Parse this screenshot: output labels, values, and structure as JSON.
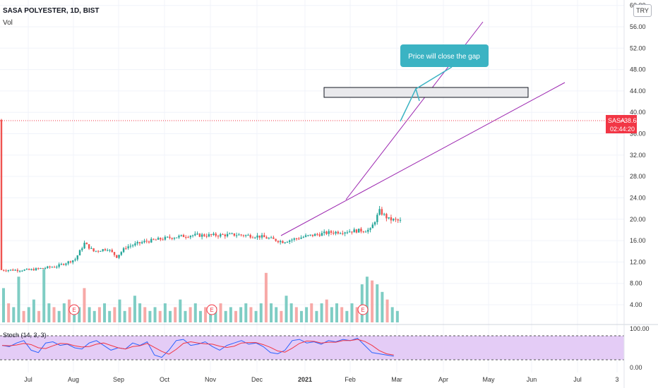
{
  "header": {
    "symbol": "SASA POLYESTER, 1D, BIST",
    "vol_label": "Vol"
  },
  "currency_button": "TRY",
  "price_label": {
    "symbol": "SASA",
    "price": "38.64",
    "countdown": "02:44:20",
    "color": "#f23645"
  },
  "callout": {
    "text": "Price will close the gap",
    "color": "#3bb3c3"
  },
  "stoch_label": "Stoch (14, 3, 3)",
  "earnings_marker": "E",
  "chart_data": {
    "type": "candlestick",
    "title": "SASA POLYESTER, 1D, BIST",
    "y_ticks": [
      "60.00",
      "56.00",
      "52.00",
      "48.00",
      "44.00",
      "40.00",
      "36.00",
      "32.00",
      "28.00",
      "24.00",
      "20.00",
      "16.00",
      "12.00",
      "8.00",
      "4.00"
    ],
    "stoch_ticks": [
      "100.00",
      "0.00"
    ],
    "x_ticks": [
      "Jul",
      "Aug",
      "Sep",
      "Oct",
      "Nov",
      "Dec",
      "2021",
      "Feb",
      "Mar",
      "Apr",
      "May",
      "Jun",
      "Jul",
      "3"
    ],
    "ylim": [
      0,
      60
    ],
    "current_price": 38.64,
    "gap_zone": [
      42.8,
      44.8
    ],
    "price_path": [
      {
        "x": 0.0,
        "y": 10.5
      },
      {
        "x": 0.6,
        "y": 11.2
      },
      {
        "x": 1.0,
        "y": 12.5
      },
      {
        "x": 1.2,
        "y": 15.5
      },
      {
        "x": 1.4,
        "y": 14.0
      },
      {
        "x": 1.7,
        "y": 14.5
      },
      {
        "x": 1.9,
        "y": 13.0
      },
      {
        "x": 2.1,
        "y": 14.8
      },
      {
        "x": 2.5,
        "y": 15.8
      },
      {
        "x": 3.0,
        "y": 16.5
      },
      {
        "x": 3.5,
        "y": 17.0
      },
      {
        "x": 4.0,
        "y": 17.0
      },
      {
        "x": 4.5,
        "y": 17.1
      },
      {
        "x": 5.0,
        "y": 16.8
      },
      {
        "x": 5.5,
        "y": 15.8
      },
      {
        "x": 6.0,
        "y": 16.8
      },
      {
        "x": 6.5,
        "y": 17.5
      },
      {
        "x": 7.0,
        "y": 17.8
      },
      {
        "x": 7.4,
        "y": 18.0
      },
      {
        "x": 7.6,
        "y": 21.5
      },
      {
        "x": 7.8,
        "y": 20.0
      },
      {
        "x": 8.1,
        "y": 19.6
      },
      {
        "x": 8.5,
        "y": 20.5
      },
      {
        "x": 9.0,
        "y": 22.5
      },
      {
        "x": 9.5,
        "y": 25.5
      },
      {
        "x": 10.0,
        "y": 26.0
      },
      {
        "x": 10.5,
        "y": 26.8
      },
      {
        "x": 10.8,
        "y": 29.0
      },
      {
        "x": 11.0,
        "y": 32.0
      },
      {
        "x": 11.2,
        "y": 36.0
      },
      {
        "x": 11.4,
        "y": 41.0
      },
      {
        "x": 11.6,
        "y": 49.0
      },
      {
        "x": 11.7,
        "y": 43.0
      },
      {
        "x": 11.9,
        "y": 38.0
      },
      {
        "x": 12.0,
        "y": 36.5
      },
      {
        "x": 12.2,
        "y": 40.5
      },
      {
        "x": 12.5,
        "y": 38.6
      }
    ],
    "volume_bars": [
      9,
      5,
      4,
      12,
      3,
      4,
      6,
      3,
      14,
      5,
      4,
      3,
      5,
      6,
      3,
      4,
      9,
      4,
      3,
      4,
      5,
      3,
      4,
      6,
      3,
      4,
      7,
      5,
      4,
      3,
      4,
      3,
      5,
      3,
      4,
      6,
      3,
      4,
      5,
      3,
      4,
      3,
      4,
      5,
      3,
      4,
      3,
      4,
      5,
      4,
      3,
      5,
      13,
      5,
      4,
      3,
      7,
      5,
      4,
      3,
      4,
      5,
      3,
      5,
      6,
      4,
      5,
      4,
      3,
      5,
      4,
      10,
      12,
      11,
      10,
      8,
      6,
      4,
      3
    ],
    "stochastic": {
      "k": [
        60,
        55,
        70,
        80,
        40,
        30,
        70,
        75,
        60,
        65,
        50,
        45,
        70,
        80,
        60,
        40,
        50,
        45,
        70,
        60,
        75,
        20,
        10,
        40,
        80,
        85,
        60,
        65,
        75,
        55,
        40,
        60,
        70,
        80,
        65,
        70,
        55,
        30,
        25,
        40,
        80,
        85,
        70,
        75,
        65,
        80,
        75,
        85,
        80,
        90,
        60,
        30,
        25,
        20,
        15
      ]
    }
  }
}
